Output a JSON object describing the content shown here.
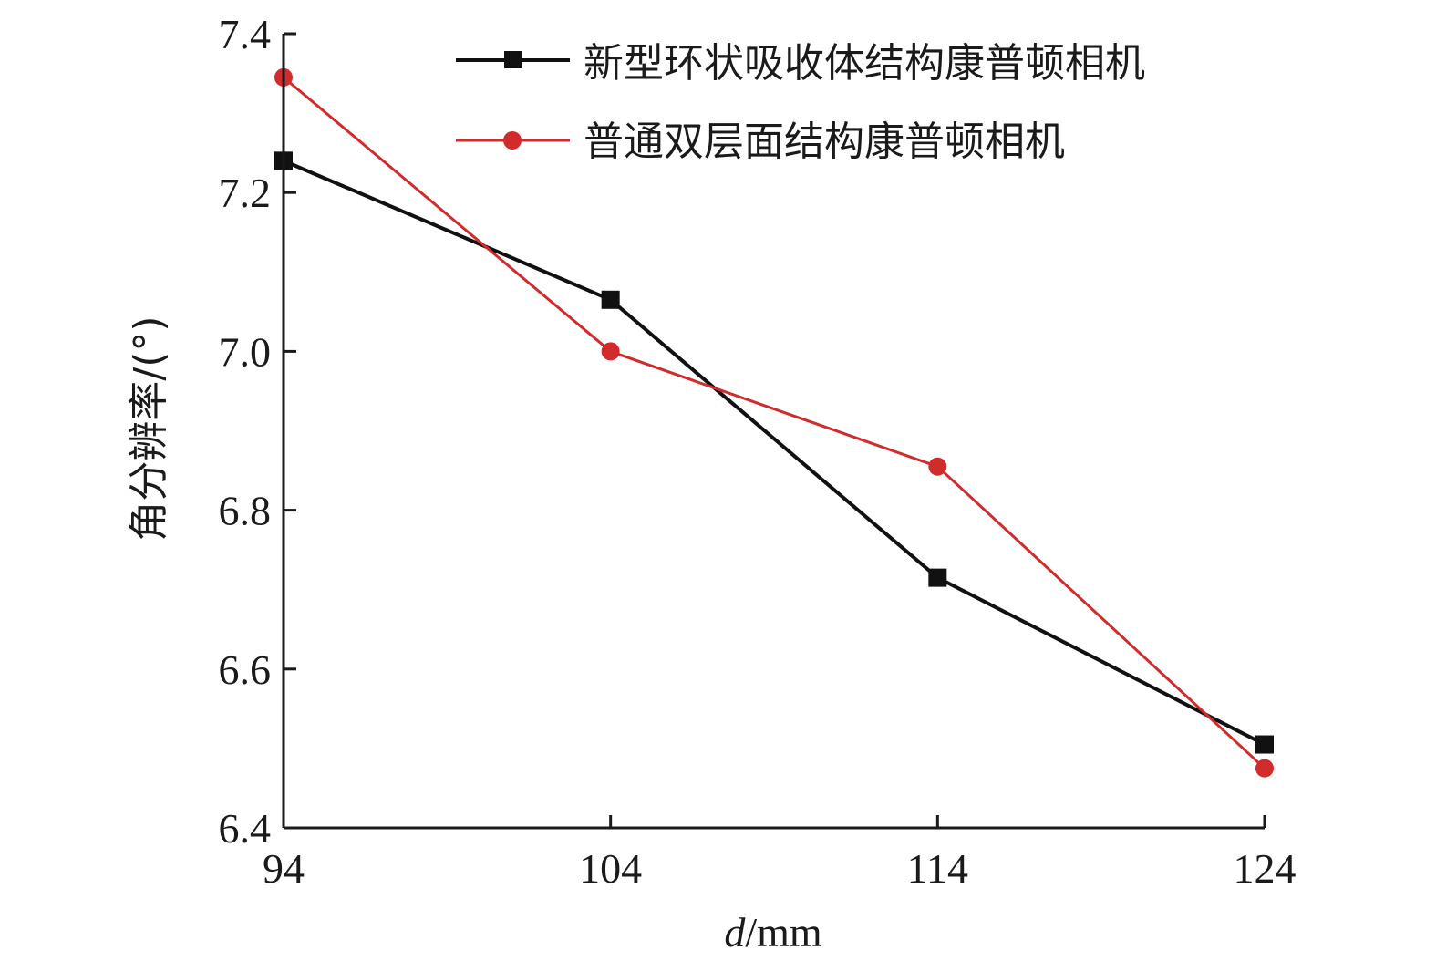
{
  "chart_data": {
    "type": "line",
    "x": [
      94,
      104,
      114,
      124
    ],
    "xticks": [
      "94",
      "104",
      "114",
      "124"
    ],
    "yticks": [
      "6.4",
      "6.6",
      "6.8",
      "7.0",
      "7.2",
      "7.4"
    ],
    "xlim": [
      94,
      124
    ],
    "ylim": [
      6.4,
      7.4
    ],
    "xlabel_italic": "d",
    "xlabel_rest": "/mm",
    "ylabel": "角分辨率/(°)",
    "grid": false,
    "legend_position": "top-right",
    "series": [
      {
        "name": "新型环状吸收体结构康普顿相机",
        "values": [
          7.24,
          7.065,
          6.715,
          6.505
        ],
        "color": "#111111",
        "marker": "square"
      },
      {
        "name": "普通双层面结构康普顿相机",
        "values": [
          7.345,
          7.0,
          6.855,
          6.475
        ],
        "color": "#d22b2b",
        "marker": "circle"
      }
    ]
  }
}
